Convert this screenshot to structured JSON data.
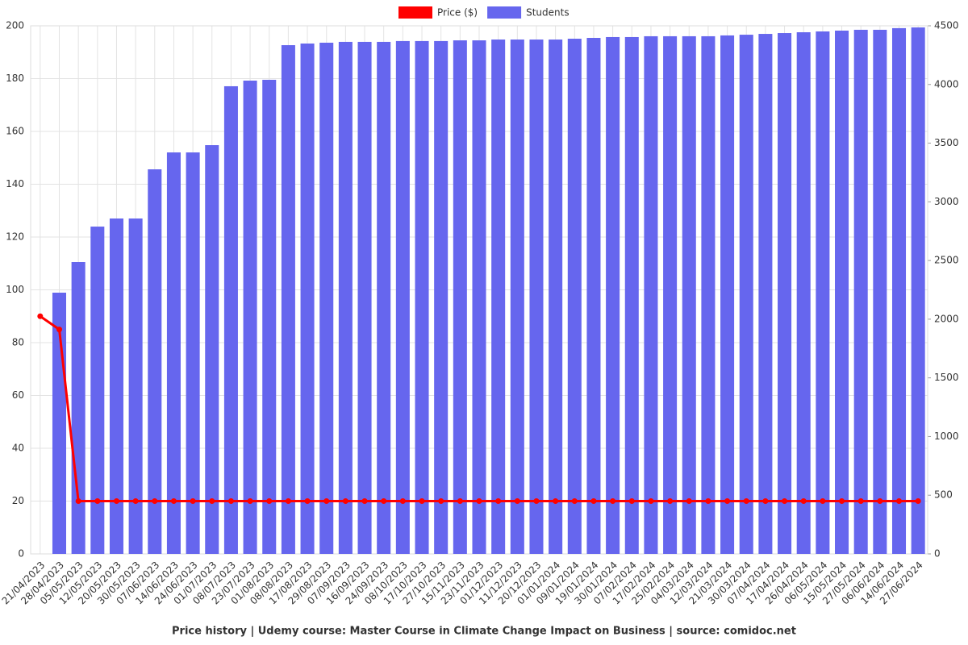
{
  "chart_data": {
    "type": "combo",
    "title": "Price history | Udemy course: Master Course in Climate Change Impact on Business | source: comidoc.net",
    "categories": [
      "21/04/2023",
      "28/04/2023",
      "05/05/2023",
      "12/05/2023",
      "20/05/2023",
      "30/05/2023",
      "07/06/2023",
      "14/06/2023",
      "24/06/2023",
      "01/07/2023",
      "08/07/2023",
      "23/07/2023",
      "01/08/2023",
      "08/08/2023",
      "17/08/2023",
      "29/08/2023",
      "07/09/2023",
      "16/09/2023",
      "24/09/2023",
      "08/10/2023",
      "17/10/2023",
      "27/10/2023",
      "15/11/2023",
      "23/11/2023",
      "01/12/2023",
      "11/12/2023",
      "20/12/2023",
      "01/01/2024",
      "09/01/2024",
      "19/01/2024",
      "30/01/2024",
      "07/02/2024",
      "17/02/2024",
      "25/02/2024",
      "04/03/2024",
      "12/03/2024",
      "21/03/2024",
      "30/03/2024",
      "07/04/2024",
      "17/04/2024",
      "26/04/2024",
      "06/05/2024",
      "15/05/2024",
      "27/05/2024",
      "06/06/2024",
      "14/06/2024",
      "27/06/2024"
    ],
    "series": [
      {
        "name": "Price ($)",
        "color": "#ff0000",
        "type": "line",
        "axis": "y",
        "values": [
          90,
          85,
          20,
          20,
          20,
          20,
          20,
          20,
          20,
          20,
          20,
          20,
          20,
          20,
          20,
          20,
          20,
          20,
          20,
          20,
          20,
          20,
          20,
          20,
          20,
          20,
          20,
          20,
          20,
          20,
          20,
          20,
          20,
          20,
          20,
          20,
          20,
          20,
          20,
          20,
          20,
          20,
          20,
          20,
          20,
          20,
          20
        ]
      },
      {
        "name": "Students",
        "color": "#6666ee",
        "type": "bar",
        "axis": "y2",
        "values": [
          null,
          2226,
          2487,
          2789,
          2858,
          2858,
          3277,
          3421,
          3421,
          3483,
          3985,
          4033,
          4040,
          4335,
          4349,
          4356,
          4363,
          4363,
          4363,
          4370,
          4370,
          4370,
          4376,
          4376,
          4383,
          4383,
          4383,
          4383,
          4390,
          4397,
          4404,
          4404,
          4411,
          4411,
          4411,
          4411,
          4418,
          4424,
          4431,
          4438,
          4445,
          4452,
          4459,
          4466,
          4466,
          4480,
          4486
        ]
      }
    ],
    "ylim": [
      0,
      200
    ],
    "yticks": [
      0,
      20,
      40,
      60,
      80,
      100,
      120,
      140,
      160,
      180,
      200
    ],
    "y2lim": [
      0,
      4500
    ],
    "y2ticks": [
      0,
      500,
      1000,
      1500,
      2000,
      2500,
      3000,
      3500,
      4000,
      4500
    ],
    "grid": true,
    "legend": "top"
  }
}
